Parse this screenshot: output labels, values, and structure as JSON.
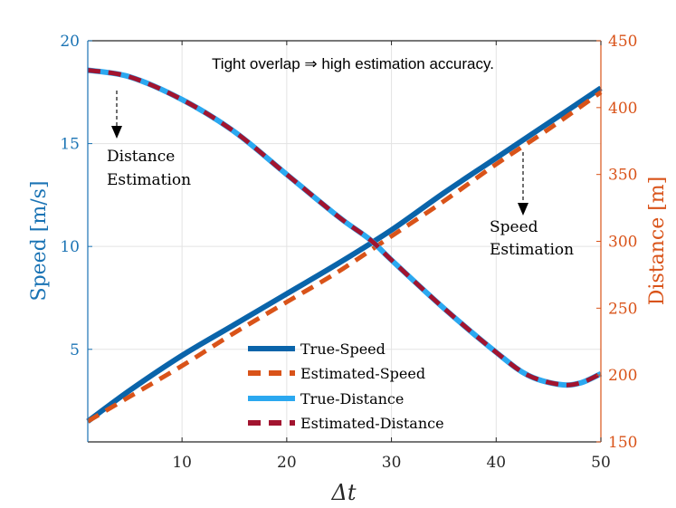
{
  "chart_data": {
    "type": "line",
    "title": "",
    "annotation_main": "Tight overlap ⇒ high estimation accuracy.",
    "annotation_distance": [
      "Distance",
      "Estimation"
    ],
    "annotation_speed": [
      "Speed",
      "Estimation"
    ],
    "xlabel": "Δt",
    "ylabel_left": "Speed [m/s]",
    "ylabel_right": "Distance [m]",
    "xlim": [
      1,
      50
    ],
    "ylim_left": [
      0.5,
      20
    ],
    "ylim_right": [
      150,
      450
    ],
    "x_ticks": [
      10,
      20,
      30,
      40,
      50
    ],
    "y_left_ticks": [
      5,
      10,
      15,
      20
    ],
    "y_right_ticks": [
      150,
      200,
      250,
      300,
      350,
      400,
      450
    ],
    "grid": true,
    "colors": {
      "left_axis": "#1a73b4",
      "right_axis": "#d95319",
      "true_speed": "#0a64aa",
      "estimated_speed": "#d95319",
      "true_distance": "#2ba8f0",
      "estimated_distance": "#a2142f",
      "grid": "#e3e3e3",
      "axis": "#262626"
    },
    "series": [
      {
        "name": "True-Speed",
        "axis": "left",
        "style": "solid",
        "x": [
          1,
          5,
          10,
          15,
          20,
          25,
          30,
          35,
          40,
          45,
          50
        ],
        "y": [
          1.5,
          3.0,
          4.7,
          6.2,
          7.7,
          9.2,
          10.8,
          12.6,
          14.3,
          16.0,
          17.7
        ]
      },
      {
        "name": "Estimated-Speed",
        "axis": "left",
        "style": "dashed",
        "x": [
          1,
          5,
          10,
          15,
          20,
          25,
          30,
          35,
          40,
          45,
          50
        ],
        "y": [
          1.5,
          2.7,
          4.2,
          5.8,
          7.3,
          8.8,
          10.5,
          12.2,
          14.0,
          15.7,
          17.5
        ]
      },
      {
        "name": "True-Distance",
        "axis": "right",
        "style": "solid",
        "x": [
          1,
          5,
          10,
          15,
          20,
          25,
          28,
          30,
          35,
          40,
          43,
          46,
          48,
          50
        ],
        "y": [
          428,
          423,
          406,
          382,
          350,
          318,
          301,
          286,
          250,
          217,
          200,
          193,
          194,
          201
        ]
      },
      {
        "name": "Estimated-Distance",
        "axis": "right",
        "style": "dashed",
        "x": [
          1,
          5,
          10,
          15,
          20,
          25,
          28,
          30,
          35,
          40,
          43,
          46,
          48,
          50
        ],
        "y": [
          428,
          423,
          406,
          382,
          350,
          318,
          301,
          286,
          250,
          217,
          200,
          193,
          194,
          201
        ]
      }
    ]
  }
}
